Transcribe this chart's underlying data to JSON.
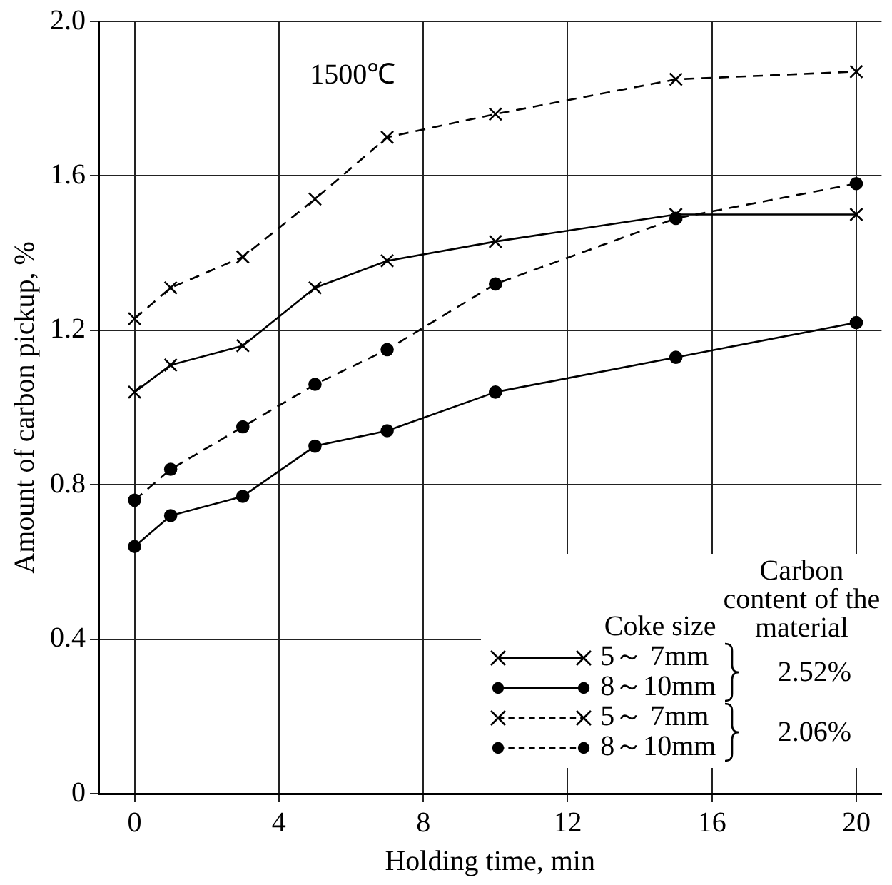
{
  "chart_data": {
    "type": "line",
    "xlabel": "Holding time, min",
    "ylabel": "Amount of carbon pickup, %",
    "legend_title": "Coke size",
    "annotations": [
      "1500℃",
      "Carbon content of the material",
      "2.52%",
      "2.06%"
    ],
    "x": [
      0,
      1,
      3,
      5,
      7,
      10,
      15,
      20
    ],
    "xlim": [
      -1,
      20.7
    ],
    "xticks": [
      0,
      4,
      8,
      12,
      16,
      20
    ],
    "ylim": [
      0,
      2.0
    ],
    "yticks": [
      0,
      {
        "value": 0.4,
        "label": "0.4"
      },
      {
        "value": 0.8,
        "label": "0.8"
      },
      {
        "value": 1.2,
        "label": "1.2"
      },
      {
        "value": 1.6,
        "label": "1.6"
      },
      {
        "value": 2.0,
        "label": "2.0"
      }
    ],
    "grid": true,
    "legend": "bottom right",
    "series": [
      {
        "name": "5～ 7mm",
        "color": "#000000",
        "marker": "cross",
        "line_style": "solid",
        "values": [
          1.04,
          1.11,
          1.16,
          1.31,
          1.38,
          1.43,
          1.5,
          1.5
        ]
      },
      {
        "name": "8～10mm",
        "color": "#000000",
        "marker": "circle",
        "line_style": "solid",
        "values": [
          0.64,
          0.72,
          0.77,
          0.9,
          0.94,
          1.04,
          1.13,
          1.22
        ]
      },
      {
        "name": "5～ 7mm",
        "color": "#000000",
        "marker": "cross",
        "line_style": "dashed",
        "values": [
          1.23,
          1.31,
          1.39,
          1.54,
          1.7,
          1.76,
          1.85,
          1.87
        ]
      },
      {
        "name": "8～10mm",
        "color": "#000000",
        "marker": "circle",
        "line_style": "dashed",
        "values": [
          0.76,
          0.84,
          0.95,
          1.06,
          1.15,
          1.32,
          1.49,
          1.58
        ]
      }
    ]
  }
}
